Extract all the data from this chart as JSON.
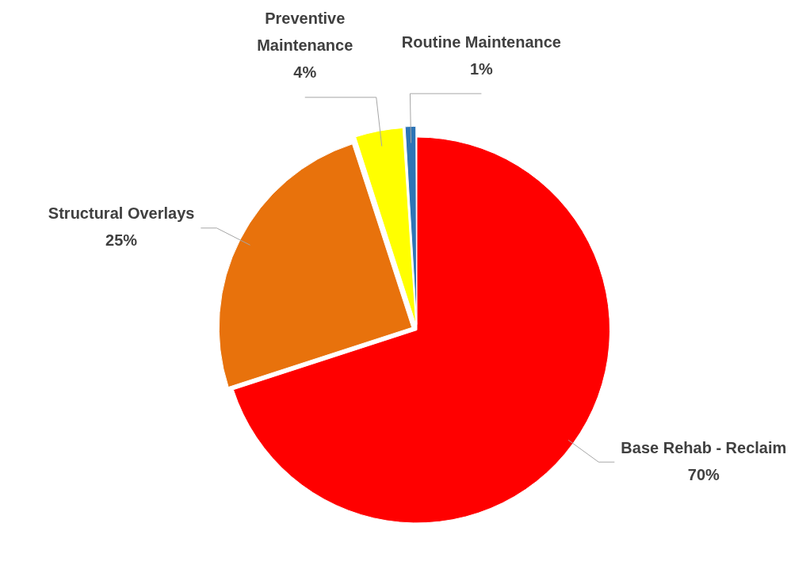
{
  "chart_data": {
    "type": "pie",
    "categories": [
      "Base Rehab - Reclaim",
      "Structural Overlays",
      "Preventive Maintenance",
      "Routine Maintenance"
    ],
    "values": [
      70,
      25,
      4,
      1
    ],
    "value_labels": [
      "70%",
      "25%",
      "4%",
      "1%"
    ],
    "colors": [
      "#ff0000",
      "#e8720c",
      "#ffff00",
      "#2e75b6"
    ],
    "legend": false
  }
}
